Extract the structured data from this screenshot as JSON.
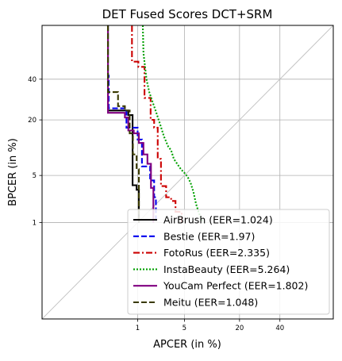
{
  "chart_data": {
    "type": "line",
    "title": "DET Fused Scores DCT+SRM",
    "xlabel": "APCER (in %)",
    "ylabel": "BPCER (in %)",
    "xscale": "probit",
    "yscale": "probit",
    "xlim": [
      0.01,
      70
    ],
    "ylim": [
      0.01,
      70
    ],
    "xticks": [
      1,
      5,
      20,
      40
    ],
    "yticks": [
      1,
      5,
      20,
      40
    ],
    "xtick_labels": [
      "1",
      "5",
      "20",
      "40"
    ],
    "ytick_labels": [
      "1",
      "5",
      "20",
      "40"
    ],
    "grid": true,
    "diagonal_reference": true,
    "legend_position": "bottom-right",
    "series": [
      {
        "name": "AirBrush",
        "eer": "1.024",
        "label": "AirBrush (EER=1.024)",
        "color": "#000000",
        "dash": "solid",
        "x": [
          0.29,
          0.29,
          0.69,
          0.69,
          0.82,
          0.82,
          0.96,
          0.96,
          1.05,
          1.05
        ],
        "y": [
          70,
          24,
          24,
          22,
          22,
          3.7,
          3.7,
          3.2,
          3.2,
          1.0
        ]
      },
      {
        "name": "Bestie",
        "eer": "1.97",
        "label": "Bestie (EER=1.97)",
        "color": "#0000ee",
        "dash": "dashed",
        "x": [
          0.29,
          0.29,
          0.3,
          0.3,
          0.64,
          0.64,
          1.0,
          1.0,
          1.18,
          1.18,
          1.6,
          1.6,
          1.85,
          1.85,
          1.97,
          1.97
        ],
        "y": [
          70,
          42,
          42,
          25,
          25,
          17,
          17,
          13,
          13,
          6.5,
          6.5,
          4.3,
          4.3,
          2.5,
          2.5,
          1.0
        ]
      },
      {
        "name": "FotoRus",
        "eer": "2.335",
        "label": "FotoRus (EER=2.335)",
        "color": "#cc0000",
        "dash": "dashdot",
        "x": [
          0.8,
          0.8,
          1.03,
          1.03,
          1.3,
          1.3,
          1.63,
          1.63,
          1.85,
          1.85,
          2.1,
          2.1,
          2.35,
          2.35,
          2.8,
          2.8,
          3.3,
          3.3,
          3.8,
          3.8,
          4.6,
          4.6
        ],
        "y": [
          70,
          50,
          50,
          47,
          47,
          30,
          30,
          20,
          20,
          17,
          17,
          8,
          8,
          3.6,
          3.6,
          2.5,
          2.5,
          2.2,
          2.2,
          1.5,
          1.5,
          1.0
        ]
      },
      {
        "name": "InstaBeauty",
        "eer": "5.264",
        "label": "InstaBeauty (EER=5.264)",
        "color": "#00a000",
        "dash": "dotted",
        "x": [
          1.22,
          1.25,
          1.4,
          1.55,
          1.75,
          2.0,
          2.3,
          2.6,
          3.0,
          3.3,
          3.6,
          4.0,
          4.5,
          5.0,
          5.5,
          6.0,
          6.5,
          7.0,
          7.5,
          8.0,
          8.5
        ],
        "y": [
          70,
          55,
          40,
          33,
          28,
          23,
          18,
          14,
          11,
          10,
          8,
          7,
          6,
          5.4,
          4.8,
          4.0,
          3.0,
          2.0,
          1.5,
          1.2,
          1.0
        ]
      },
      {
        "name": "YouCam Perfect",
        "eer": "1.802",
        "label": "YouCam Perfect (EER=1.802)",
        "color": "#800080",
        "dash": "solid",
        "x": [
          0.29,
          0.29,
          0.6,
          0.6,
          0.69,
          0.69,
          0.86,
          0.86,
          1.05,
          1.05,
          1.25,
          1.25,
          1.45,
          1.45,
          1.65,
          1.65,
          1.8,
          1.8
        ],
        "y": [
          70,
          23,
          23,
          21,
          21,
          16,
          16,
          15,
          15,
          12,
          12,
          9,
          9,
          7,
          7,
          3.4,
          3.4,
          1.0
        ]
      },
      {
        "name": "Meitu",
        "eer": "1.048",
        "label": "Meitu (EER=1.048)",
        "color": "#3a3a00",
        "dash": "dashed",
        "x": [
          0.29,
          0.29,
          0.45,
          0.45,
          0.6,
          0.6,
          0.73,
          0.73,
          0.83,
          0.83,
          0.96,
          0.96,
          1.05,
          1.05
        ],
        "y": [
          70,
          33,
          33,
          26,
          26,
          24,
          24,
          15,
          15,
          9,
          9,
          6,
          6,
          1.0
        ]
      }
    ]
  }
}
